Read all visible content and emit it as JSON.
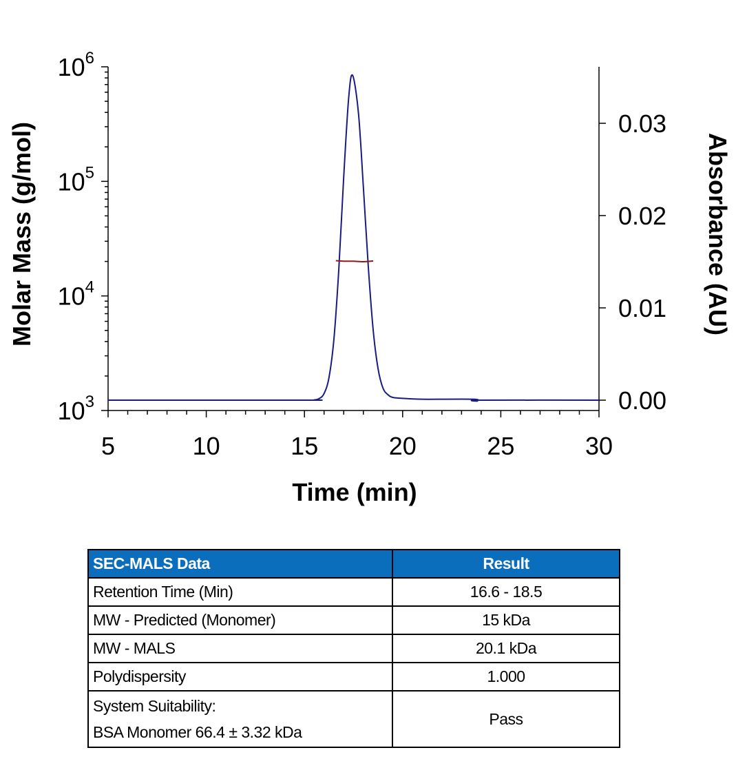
{
  "chart_data": {
    "type": "line",
    "xlabel": "Time (min)",
    "ylabel_left": "Molar Mass (g/mol)",
    "ylabel_right": "Absorbance (AU)",
    "xlim": [
      5,
      30
    ],
    "ylim_left": [
      1000,
      1000000
    ],
    "left_scale": "log",
    "ylim_right": [
      0,
      0.0355
    ],
    "x_ticks": [
      "5",
      "10",
      "15",
      "20",
      "25",
      "30"
    ],
    "left_ticks": [
      {
        "base": "10",
        "exp": "3"
      },
      {
        "base": "10",
        "exp": "4"
      },
      {
        "base": "10",
        "exp": "5"
      },
      {
        "base": "10",
        "exp": "6"
      }
    ],
    "right_ticks": [
      "0.00",
      "0.01",
      "0.02",
      "0.03"
    ],
    "grid": false,
    "series": [
      {
        "axis": "right",
        "color": "#1a1a80",
        "x": [
          5,
          15,
          15.5,
          15.75,
          16,
          16.25,
          16.5,
          16.75,
          17,
          17.25,
          17.45,
          17.75,
          18,
          18.25,
          18.5,
          18.75,
          19,
          19.25,
          19.5,
          20,
          21,
          23.6,
          23.8,
          24,
          30
        ],
        "y": [
          0,
          0,
          3e-05,
          0.00017,
          0.00072,
          0.00246,
          0.0066,
          0.0142,
          0.0242,
          0.0327,
          0.0352,
          0.0311,
          0.0231,
          0.0145,
          0.0076,
          0.0034,
          0.0013,
          0.0006,
          0.0003,
          0.0002,
          0.0001,
          0.0001,
          -0.0001,
          0,
          0
        ]
      },
      {
        "axis": "left",
        "color": "#8b1a1a",
        "x": [
          16.6,
          17.0,
          17.5,
          18.0,
          18.5
        ],
        "y": [
          20300,
          20100,
          20100,
          19900,
          20200
        ]
      }
    ]
  },
  "table": {
    "headers": [
      "SEC-MALS Data",
      "Result"
    ],
    "header_color": "#0a6ebd",
    "rows": [
      {
        "label": "Retention Time (Min)",
        "value": "16.6 - 18.5"
      },
      {
        "label": "MW - Predicted (Monomer)",
        "value": "15 kDa"
      },
      {
        "label": "MW - MALS",
        "value": "20.1 kDa"
      },
      {
        "label": "Polydispersity",
        "value": "1.000"
      },
      {
        "label": "System Suitability:",
        "label2": "BSA Monomer 66.4 ± 3.32 kDa",
        "value": "Pass"
      }
    ]
  }
}
